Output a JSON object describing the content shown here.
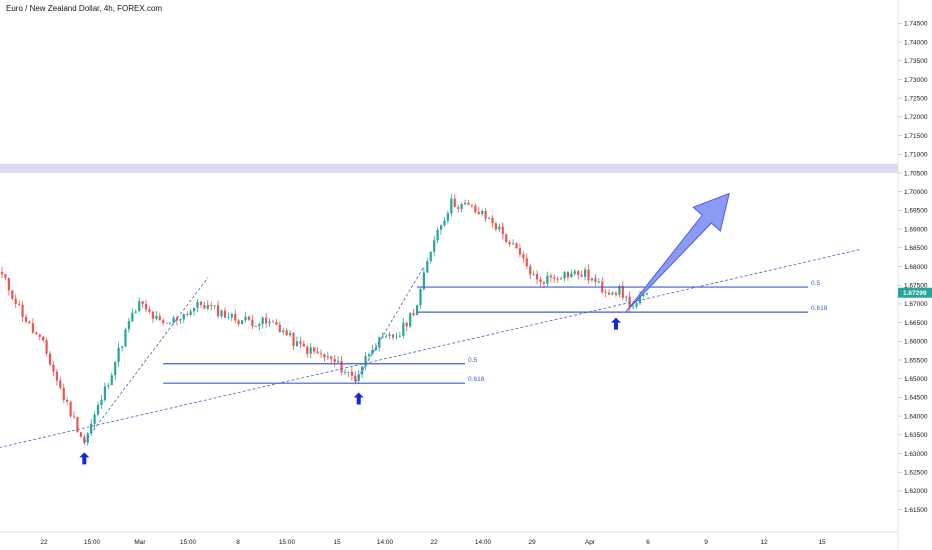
{
  "header": {
    "title": "Euro / New Zealand Dollar, 4h, FOREX.com"
  },
  "colors": {
    "up": "#26a69a",
    "down": "#ef5350",
    "fib_line": "#3f5bd6",
    "trend_line": "#4a5fd0",
    "arrow_marker": "#1526d8",
    "big_arrow_fill": "#7f8ff2",
    "big_arrow_stroke": "#4a5ee6",
    "zone": "#dcdaf0",
    "price_tag": "#26a69a"
  },
  "chart_data": {
    "type": "candlestick",
    "title": "Euro / New Zealand Dollar, 4h, FOREX.com",
    "ylim": [
      1.6125,
      1.7475
    ],
    "y_ticks": [
      "1.74500",
      "1.74000",
      "1.73500",
      "1.73000",
      "1.72500",
      "1.72000",
      "1.71500",
      "1.71000",
      "1.70500",
      "1.70000",
      "1.69500",
      "1.69000",
      "1.68500",
      "1.68000",
      "1.67500",
      "1.67000",
      "1.66500",
      "1.66000",
      "1.65500",
      "1.65000",
      "1.64500",
      "1.64000",
      "1.63500",
      "1.63000",
      "1.62500",
      "1.62000",
      "1.61500"
    ],
    "x_ticks": [
      "22",
      "15:00",
      "Mar",
      "15:00",
      "8",
      "15:00",
      "15",
      "14:00",
      "22",
      "14:00",
      "29",
      "Apr",
      "6",
      "9",
      "12",
      "15"
    ],
    "current_price": "1.67299",
    "key_points": [
      {
        "bar": 0,
        "close": 1.6775
      },
      {
        "bar": 8,
        "close": 1.664
      },
      {
        "bar": 12,
        "close": 1.659
      },
      {
        "bar": 18,
        "close": 1.645
      },
      {
        "bar": 24,
        "close": 1.633
      },
      {
        "bar": 30,
        "close": 1.647
      },
      {
        "bar": 37,
        "close": 1.665
      },
      {
        "bar": 40,
        "close": 1.67
      },
      {
        "bar": 47,
        "close": 1.664
      },
      {
        "bar": 58,
        "close": 1.67
      },
      {
        "bar": 68,
        "close": 1.666
      },
      {
        "bar": 80,
        "close": 1.6645
      },
      {
        "bar": 86,
        "close": 1.659
      },
      {
        "bar": 96,
        "close": 1.655
      },
      {
        "bar": 103,
        "close": 1.65
      },
      {
        "bar": 108,
        "close": 1.659
      },
      {
        "bar": 116,
        "close": 1.662
      },
      {
        "bar": 121,
        "close": 1.67
      },
      {
        "bar": 126,
        "close": 1.688
      },
      {
        "bar": 131,
        "close": 1.697
      },
      {
        "bar": 136,
        "close": 1.696
      },
      {
        "bar": 143,
        "close": 1.692
      },
      {
        "bar": 150,
        "close": 1.684
      },
      {
        "bar": 156,
        "close": 1.676
      },
      {
        "bar": 163,
        "close": 1.678
      },
      {
        "bar": 170,
        "close": 1.678
      },
      {
        "bar": 175,
        "close": 1.674
      },
      {
        "bar": 180,
        "close": 1.6735
      },
      {
        "bar": 184,
        "close": 1.669
      },
      {
        "bar": 188,
        "close": 1.6729
      }
    ],
    "fib_levels": [
      {
        "label": "0.5",
        "price": 1.654,
        "bar_start": 47,
        "bar_end": 135
      },
      {
        "label": "0.618",
        "price": 1.6488,
        "bar_start": 47,
        "bar_end": 135
      },
      {
        "label": "0.5",
        "price": 1.6745,
        "bar_start": 121,
        "bar_end": 235
      },
      {
        "label": "0.618",
        "price": 1.6678,
        "bar_start": 121,
        "bar_end": 235
      }
    ],
    "resistance_zone": [
      1.705,
      1.7075
    ],
    "trendline": {
      "from": {
        "bar": -25,
        "price": 1.6265
      },
      "to": {
        "bar": 250,
        "price": 1.6845
      }
    },
    "swing_lines": [
      {
        "from": {
          "bar": 24,
          "price": 1.633
        },
        "to": {
          "bar": 60,
          "price": 1.677
        }
      },
      {
        "from": {
          "bar": 103,
          "price": 1.649
        },
        "to": {
          "bar": 123,
          "price": 1.68
        }
      }
    ],
    "bounce_markers": [
      {
        "bar": 24
      },
      {
        "bar": 104
      },
      {
        "bar": 179
      }
    ],
    "projection_arrow": {
      "from": {
        "bar": 182,
        "price": 1.668
      },
      "to": {
        "bar": 212,
        "price": 1.6995
      }
    }
  }
}
